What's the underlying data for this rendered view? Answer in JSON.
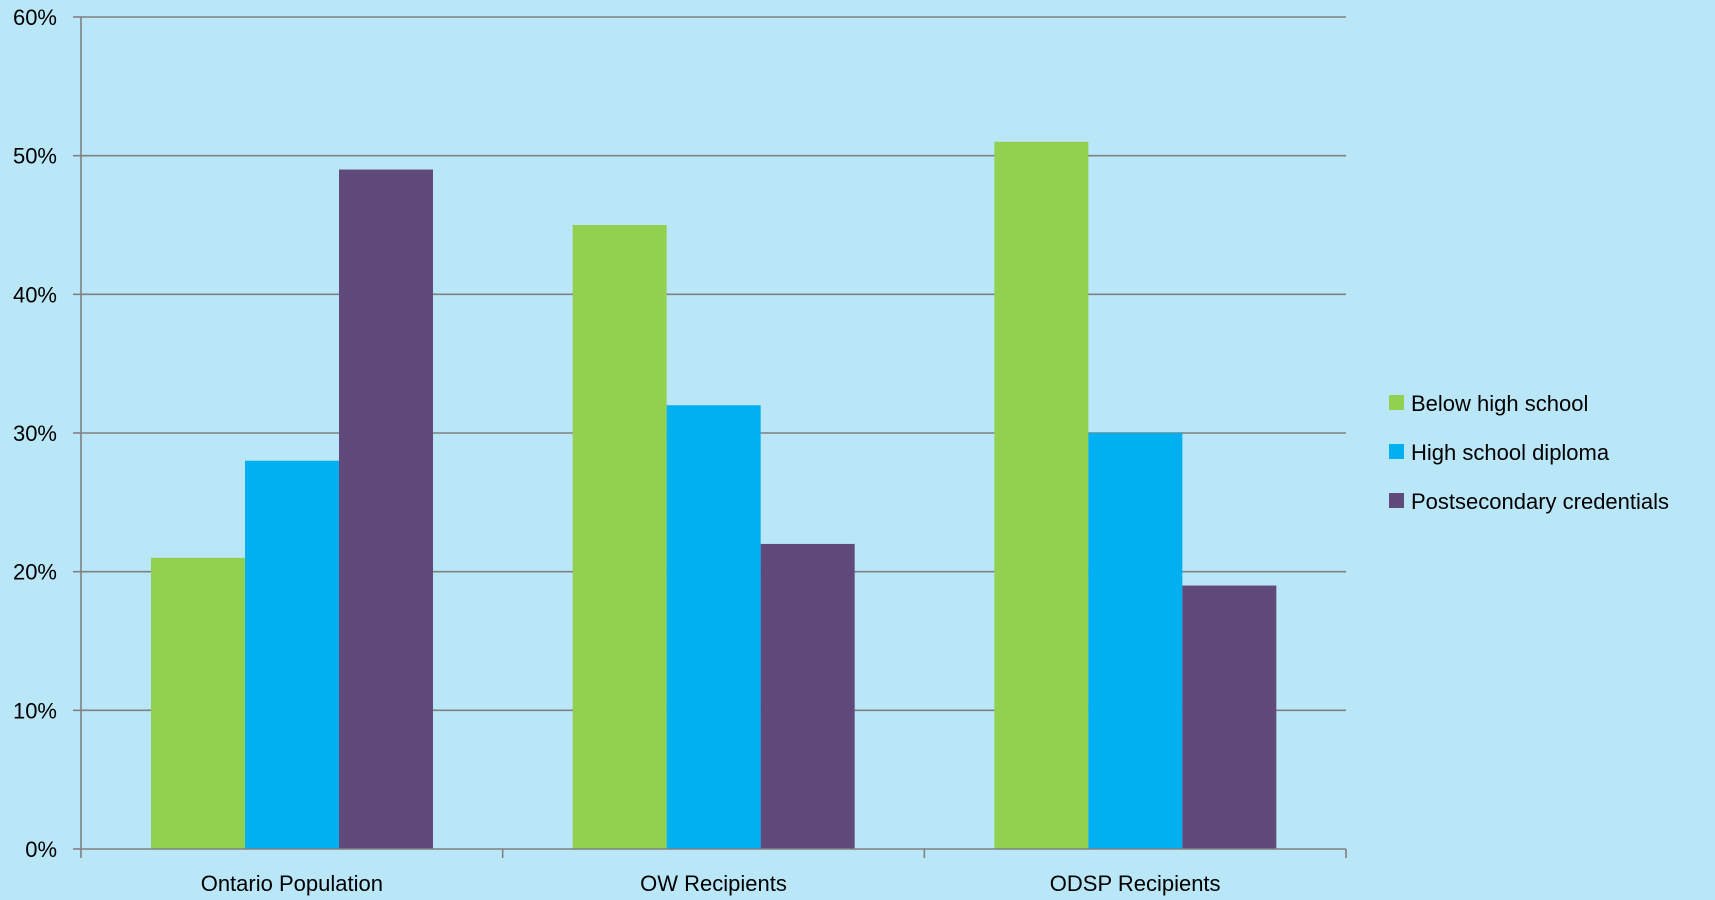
{
  "chart_data": {
    "type": "bar",
    "title": "",
    "xlabel": "",
    "ylabel": "",
    "categories": [
      "Ontario Population",
      "OW Recipients",
      "ODSP Recipients"
    ],
    "series": [
      {
        "name": "Below high school",
        "color": "#92D050",
        "values": [
          21,
          45,
          51
        ]
      },
      {
        "name": "High school diploma",
        "color": "#00B0F0",
        "values": [
          28,
          32,
          30
        ]
      },
      {
        "name": "Postsecondary credentials",
        "color": "#604A7B",
        "values": [
          49,
          22,
          19
        ]
      }
    ],
    "ylim": [
      0,
      60
    ],
    "yticks": [
      0,
      10,
      20,
      30,
      40,
      50,
      60
    ],
    "ytick_labels": [
      "0%",
      "10%",
      "20%",
      "30%",
      "40%",
      "50%",
      "60%"
    ],
    "grid": true,
    "legend_position": "right",
    "colors": {
      "background": "#B9E7F7",
      "gridline": "#808080",
      "axis": "#808080"
    }
  }
}
